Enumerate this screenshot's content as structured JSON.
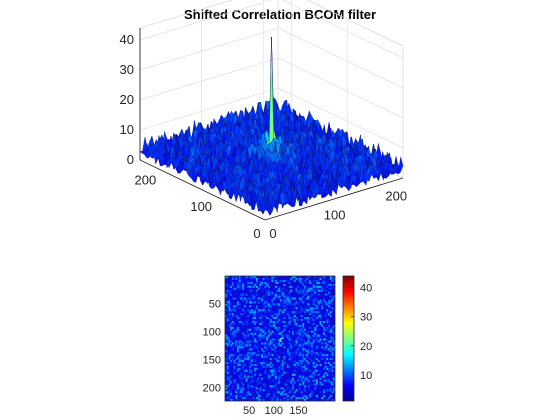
{
  "title": "Shifted Correlation BCOM filter",
  "chart_data": [
    {
      "type": "surface",
      "title": "Shifted Correlation BCOM filter",
      "x_ticks": [
        "0",
        "100",
        "200"
      ],
      "y_ticks": [
        "0",
        "100",
        "200"
      ],
      "z_ticks": [
        "0",
        "10",
        "20",
        "30",
        "40"
      ],
      "xlim": [
        0,
        224
      ],
      "ylim": [
        0,
        224
      ],
      "zlim": [
        0,
        44
      ],
      "grid": true,
      "colormap": "jet",
      "noise_floor_range": [
        1,
        8
      ],
      "peak": {
        "x": 112,
        "y": 112,
        "z": 44
      }
    },
    {
      "type": "heatmap",
      "x_ticks": [
        "50",
        "100",
        "150"
      ],
      "y_ticks": [
        "50",
        "100",
        "150",
        "200"
      ],
      "xlim": [
        1,
        224
      ],
      "ylim": [
        1,
        224
      ],
      "colorbar_ticks": [
        "10",
        "20",
        "30",
        "40"
      ],
      "colorbar_range": [
        1,
        44
      ],
      "colormap": "jet",
      "background_color": "#0a0ad4",
      "peak": {
        "x": 112,
        "y": 112,
        "value": 44
      }
    }
  ]
}
